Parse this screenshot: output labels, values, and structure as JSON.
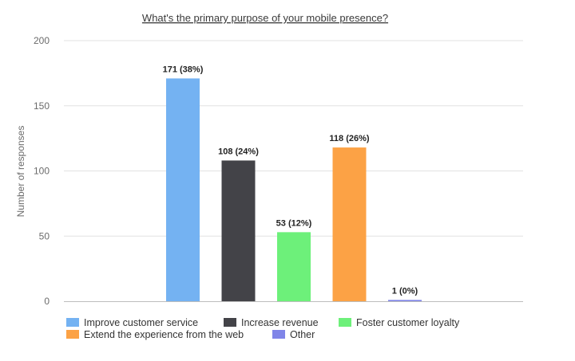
{
  "chart_data": {
    "type": "bar",
    "title": "What's the primary purpose of your mobile presence?",
    "ylabel": "Number of responses",
    "xlabel": "",
    "ylim": [
      0,
      200
    ],
    "yticks": [
      0,
      50,
      100,
      150,
      200
    ],
    "grid": true,
    "legend_position": "bottom-left",
    "categories": [
      "Improve customer service",
      "Increase revenue",
      "Foster customer loyalty",
      "Extend the experience from the web",
      "Other"
    ],
    "values": [
      171,
      108,
      53,
      118,
      1
    ],
    "data_labels": [
      "171 (38%)",
      "108 (24%)",
      "53 (12%)",
      "118 (26%)",
      "1 (0%)"
    ],
    "colors": [
      "#74b2f2",
      "#434348",
      "#6df07a",
      "#fca245",
      "#8085e8"
    ]
  }
}
